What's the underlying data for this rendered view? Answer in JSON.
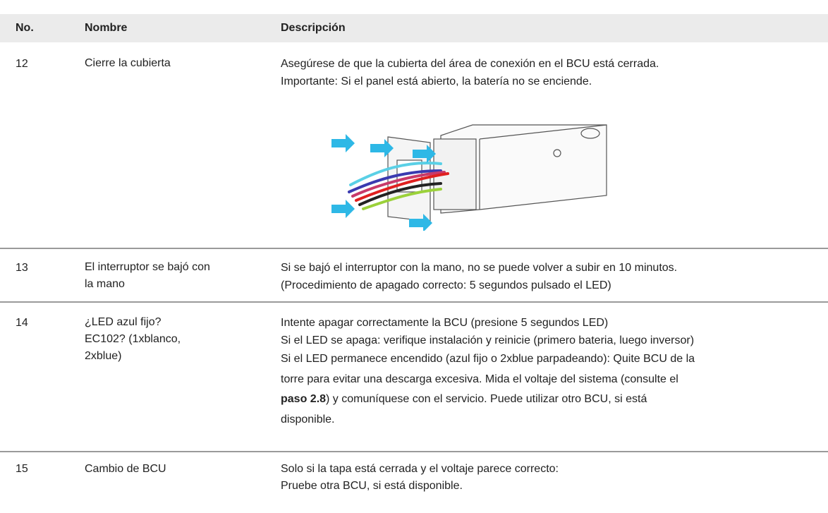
{
  "table": {
    "header": [
      "No.",
      "Nombre",
      "Descripción"
    ],
    "rows": [
      {
        "number": "12",
        "name": [
          "Cierre la cubierta"
        ],
        "description": [
          "Asegúrese de que la cubierta del área de conexión en el BCU está cerrada.",
          "Importante: Si el panel está abierto, la batería no se enciende."
        ]
      },
      {
        "number": "13",
        "name": [
          "El interruptor se bajó con",
          "la mano"
        ],
        "description": [
          "Si se bajó el interruptor con la mano, no se puede volver a subir en 10 minutos.",
          "(Procedimiento de apagado correcto: 5 segundos pulsado el LED)"
        ]
      },
      {
        "number": "14",
        "name": [
          "¿LED azul fijo?",
          "EC102? (1xblanco,",
          "2xblue)"
        ],
        "description": [
          "Intente apagar correctamente la BCU (presione 5 segundos LED)",
          "Si el LED se apaga: verifique instalación y reinicie (primero bateria, luego inversor)",
          "Si el LED permanece encendido (azul fijo o 2xblue parpadeando): Quite BCU de la",
          "torre para evitar una descarga excesiva. Mida el voltaje del sistema (consulte el",
          {
            "strong": "paso 2.8",
            "post": ") y comuníquese con el servicio. Puede utilizar otro BCU, si está"
          },
          "disponible."
        ]
      },
      {
        "number": "15",
        "name": [
          "Cambio de BCU"
        ],
        "description": [
          "Solo si la tapa está cerrada y el voltaje parece correcto:",
          "Pruebe otra BCU, si está disponible."
        ]
      }
    ]
  }
}
